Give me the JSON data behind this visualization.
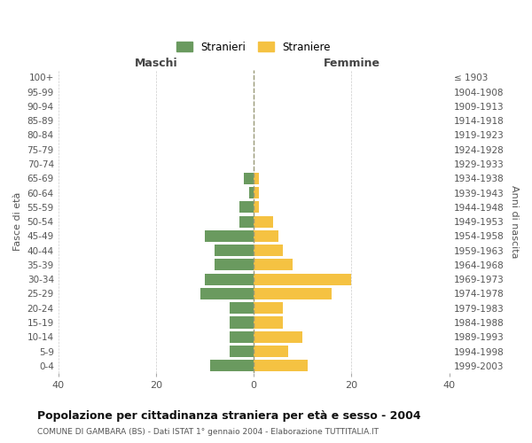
{
  "age_groups": [
    "100+",
    "95-99",
    "90-94",
    "85-89",
    "80-84",
    "75-79",
    "70-74",
    "65-69",
    "60-64",
    "55-59",
    "50-54",
    "45-49",
    "40-44",
    "35-39",
    "30-34",
    "25-29",
    "20-24",
    "15-19",
    "10-14",
    "5-9",
    "0-4"
  ],
  "birth_years": [
    "≤ 1903",
    "1904-1908",
    "1909-1913",
    "1914-1918",
    "1919-1923",
    "1924-1928",
    "1929-1933",
    "1934-1938",
    "1939-1943",
    "1944-1948",
    "1949-1953",
    "1954-1958",
    "1959-1963",
    "1964-1968",
    "1969-1973",
    "1974-1978",
    "1979-1983",
    "1984-1988",
    "1989-1993",
    "1994-1998",
    "1999-2003"
  ],
  "maschi": [
    0,
    0,
    0,
    0,
    0,
    0,
    0,
    2,
    1,
    3,
    3,
    10,
    8,
    8,
    10,
    11,
    5,
    5,
    5,
    5,
    9
  ],
  "femmine": [
    0,
    0,
    0,
    0,
    0,
    0,
    0,
    1,
    1,
    1,
    4,
    5,
    6,
    8,
    20,
    16,
    6,
    6,
    10,
    7,
    11
  ],
  "male_color": "#6a9a5f",
  "female_color": "#f5c242",
  "bg_color": "#ffffff",
  "grid_color": "#cccccc",
  "title": "Popolazione per cittadinanza straniera per età e sesso - 2004",
  "subtitle": "COMUNE DI GAMBARA (BS) - Dati ISTAT 1° gennaio 2004 - Elaborazione TUTTITALIA.IT",
  "xlabel_left": "Maschi",
  "xlabel_right": "Femmine",
  "ylabel_left": "Fasce di età",
  "ylabel_right": "Anni di nascita",
  "legend_male": "Stranieri",
  "legend_female": "Straniere",
  "xlim": 40,
  "bar_height": 0.8
}
